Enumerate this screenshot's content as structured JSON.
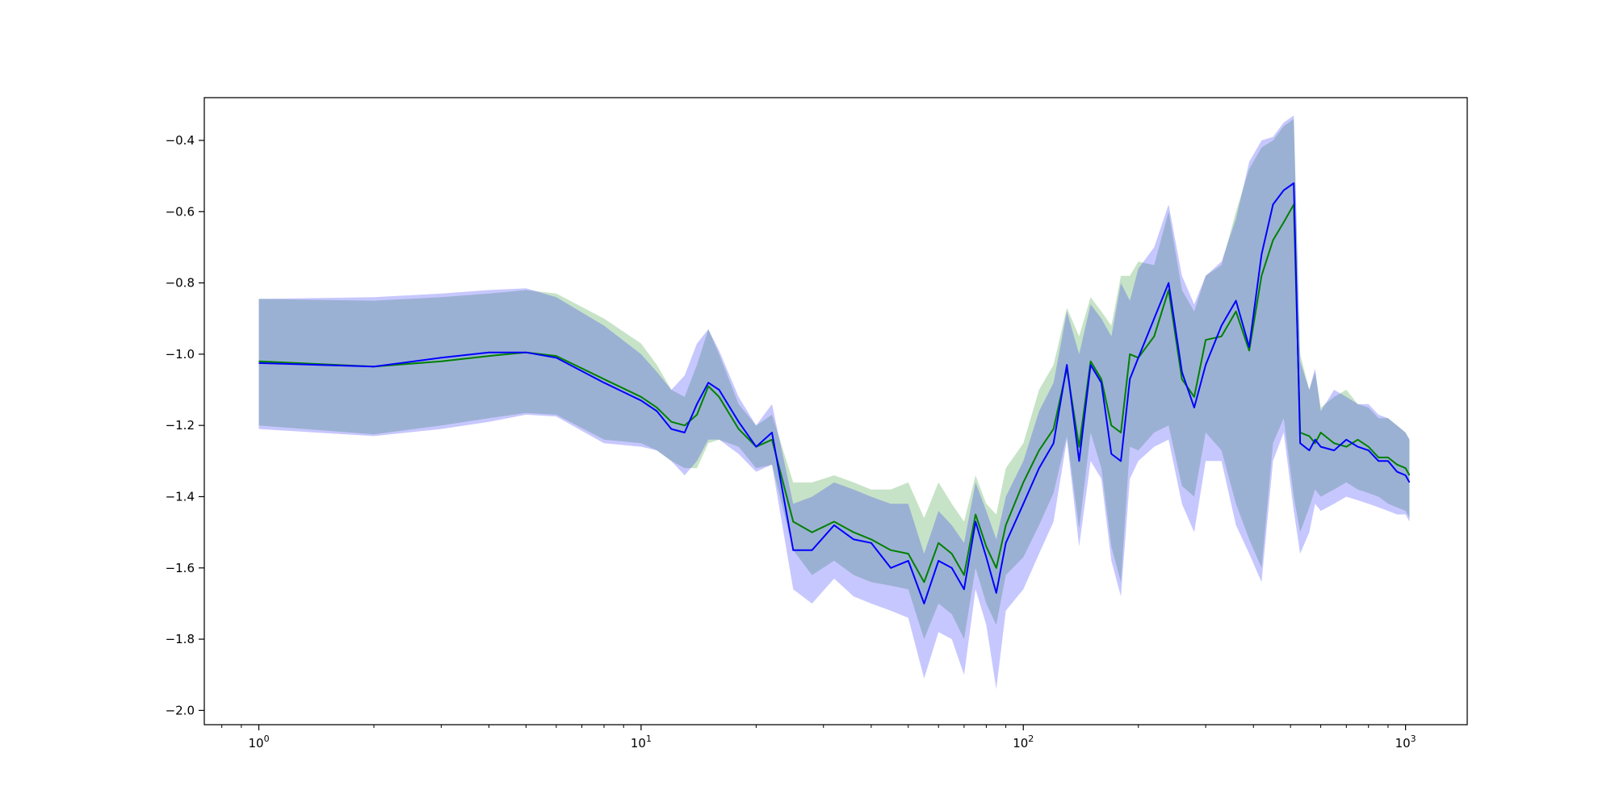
{
  "chart_data": {
    "type": "line",
    "xscale": "log",
    "xlim": [
      0.72,
      1450
    ],
    "ylim": [
      -2.04,
      -0.28
    ],
    "grid": false,
    "title": "",
    "xlabel": "",
    "ylabel": "",
    "x_ticks": [
      1,
      10,
      100,
      1000
    ],
    "x_tick_labels": [
      "10^0",
      "10^1",
      "10^2",
      "10^3"
    ],
    "y_ticks": [
      -2.0,
      -1.8,
      -1.6,
      -1.4,
      -1.2,
      -1.0,
      -0.8,
      -0.6,
      -0.4
    ],
    "y_tick_labels": [
      "−2.0",
      "−1.8",
      "−1.6",
      "−1.4",
      "−1.2",
      "−1.0",
      "−0.8",
      "−0.6",
      "−0.4"
    ],
    "colors": {
      "green_line": "#008000",
      "green_band": "#008000",
      "blue_line": "#0000ff",
      "blue_band": "#0000ff"
    },
    "series": [
      {
        "color": "green",
        "x": [
          1,
          2,
          3,
          4,
          5,
          6,
          8,
          10,
          11,
          12,
          13,
          14,
          15,
          16,
          18,
          20,
          22,
          25,
          28,
          32,
          36,
          40,
          45,
          50,
          55,
          60,
          65,
          70,
          75,
          80,
          85,
          90,
          100,
          110,
          120,
          130,
          140,
          150,
          160,
          170,
          180,
          190,
          200,
          220,
          240,
          260,
          280,
          300,
          330,
          360,
          390,
          420,
          450,
          480,
          510,
          530,
          560,
          580,
          600,
          650,
          700,
          750,
          800,
          850,
          900,
          950,
          1000,
          1024
        ],
        "y": [
          -1.02,
          -1.035,
          -1.02,
          -1.005,
          -0.995,
          -1.005,
          -1.07,
          -1.12,
          -1.15,
          -1.19,
          -1.2,
          -1.17,
          -1.09,
          -1.12,
          -1.21,
          -1.26,
          -1.24,
          -1.47,
          -1.5,
          -1.47,
          -1.5,
          -1.52,
          -1.55,
          -1.56,
          -1.64,
          -1.53,
          -1.56,
          -1.62,
          -1.45,
          -1.54,
          -1.6,
          -1.48,
          -1.36,
          -1.27,
          -1.21,
          -1.04,
          -1.26,
          -1.02,
          -1.07,
          -1.2,
          -1.22,
          -1.0,
          -1.01,
          -0.95,
          -0.82,
          -1.07,
          -1.12,
          -0.96,
          -0.95,
          -0.88,
          -0.99,
          -0.78,
          -0.68,
          -0.63,
          -0.58,
          -1.22,
          -1.23,
          -1.25,
          -1.22,
          -1.25,
          -1.26,
          -1.24,
          -1.26,
          -1.29,
          -1.29,
          -1.31,
          -1.32,
          -1.34
        ]
      },
      {
        "color": "blue",
        "x": [
          1,
          2,
          3,
          4,
          5,
          6,
          8,
          10,
          11,
          12,
          13,
          14,
          15,
          16,
          18,
          20,
          22,
          25,
          28,
          32,
          36,
          40,
          45,
          50,
          55,
          60,
          65,
          70,
          75,
          80,
          85,
          90,
          100,
          110,
          120,
          130,
          140,
          150,
          160,
          170,
          180,
          190,
          200,
          220,
          240,
          260,
          280,
          300,
          330,
          360,
          390,
          420,
          450,
          480,
          510,
          530,
          560,
          580,
          600,
          650,
          700,
          750,
          800,
          850,
          900,
          950,
          1000,
          1024
        ],
        "y": [
          -1.025,
          -1.035,
          -1.01,
          -0.995,
          -0.995,
          -1.01,
          -1.08,
          -1.13,
          -1.16,
          -1.21,
          -1.22,
          -1.14,
          -1.08,
          -1.1,
          -1.19,
          -1.26,
          -1.22,
          -1.55,
          -1.55,
          -1.48,
          -1.52,
          -1.53,
          -1.6,
          -1.58,
          -1.7,
          -1.58,
          -1.6,
          -1.66,
          -1.47,
          -1.57,
          -1.67,
          -1.53,
          -1.42,
          -1.32,
          -1.25,
          -1.03,
          -1.3,
          -1.03,
          -1.08,
          -1.28,
          -1.3,
          -1.07,
          -1.01,
          -0.9,
          -0.8,
          -1.05,
          -1.15,
          -1.03,
          -0.92,
          -0.85,
          -0.98,
          -0.72,
          -0.58,
          -0.54,
          -0.52,
          -1.25,
          -1.27,
          -1.24,
          -1.26,
          -1.27,
          -1.24,
          -1.26,
          -1.27,
          -1.3,
          -1.3,
          -1.33,
          -1.34,
          -1.36
        ]
      }
    ],
    "bands": [
      {
        "color": "green",
        "x": [
          1,
          2,
          3,
          4,
          5,
          6,
          8,
          10,
          11,
          12,
          13,
          14,
          15,
          16,
          18,
          20,
          22,
          25,
          28,
          32,
          36,
          40,
          45,
          50,
          55,
          60,
          65,
          70,
          75,
          80,
          85,
          90,
          100,
          110,
          120,
          130,
          140,
          150,
          160,
          170,
          180,
          190,
          200,
          220,
          240,
          260,
          280,
          300,
          330,
          360,
          390,
          420,
          450,
          480,
          510,
          530,
          560,
          580,
          600,
          650,
          700,
          750,
          800,
          850,
          900,
          950,
          1000,
          1024
        ],
        "upper": [
          -0.845,
          -0.85,
          -0.84,
          -0.83,
          -0.82,
          -0.83,
          -0.9,
          -0.97,
          -1.03,
          -1.1,
          -1.12,
          -1.03,
          -0.93,
          -1.0,
          -1.14,
          -1.2,
          -1.17,
          -1.36,
          -1.36,
          -1.34,
          -1.36,
          -1.38,
          -1.38,
          -1.36,
          -1.46,
          -1.36,
          -1.42,
          -1.47,
          -1.34,
          -1.42,
          -1.45,
          -1.32,
          -1.25,
          -1.1,
          -1.03,
          -0.87,
          -0.95,
          -0.84,
          -0.88,
          -0.92,
          -0.78,
          -0.78,
          -0.74,
          -0.75,
          -0.6,
          -0.82,
          -0.88,
          -0.78,
          -0.75,
          -0.6,
          -0.48,
          -0.42,
          -0.4,
          -0.36,
          -0.34,
          -1.0,
          -1.1,
          -1.05,
          -1.15,
          -1.12,
          -1.1,
          -1.14,
          -1.15,
          -1.18,
          -1.18,
          -1.2,
          -1.22,
          -1.24
        ],
        "lower": [
          -1.2,
          -1.225,
          -1.2,
          -1.18,
          -1.165,
          -1.17,
          -1.24,
          -1.25,
          -1.27,
          -1.3,
          -1.32,
          -1.32,
          -1.25,
          -1.24,
          -1.26,
          -1.32,
          -1.31,
          -1.55,
          -1.62,
          -1.58,
          -1.62,
          -1.64,
          -1.65,
          -1.66,
          -1.8,
          -1.7,
          -1.73,
          -1.8,
          -1.6,
          -1.7,
          -1.76,
          -1.62,
          -1.57,
          -1.48,
          -1.39,
          -1.23,
          -1.49,
          -1.22,
          -1.32,
          -1.54,
          -1.64,
          -1.26,
          -1.27,
          -1.22,
          -1.2,
          -1.37,
          -1.4,
          -1.22,
          -1.27,
          -1.42,
          -1.52,
          -1.6,
          -1.25,
          -1.18,
          -1.4,
          -1.5,
          -1.43,
          -1.38,
          -1.4,
          -1.38,
          -1.36,
          -1.38,
          -1.39,
          -1.4,
          -1.42,
          -1.43,
          -1.44,
          -1.46
        ]
      },
      {
        "color": "blue",
        "x": [
          1,
          2,
          3,
          4,
          5,
          6,
          8,
          10,
          11,
          12,
          13,
          14,
          15,
          16,
          18,
          20,
          22,
          25,
          28,
          32,
          36,
          40,
          45,
          50,
          55,
          60,
          65,
          70,
          75,
          80,
          85,
          90,
          100,
          110,
          120,
          130,
          140,
          150,
          160,
          170,
          180,
          190,
          200,
          220,
          240,
          260,
          280,
          300,
          330,
          360,
          390,
          420,
          450,
          480,
          510,
          530,
          560,
          580,
          600,
          650,
          700,
          750,
          800,
          850,
          900,
          950,
          1000,
          1024
        ],
        "upper": [
          -0.845,
          -0.84,
          -0.83,
          -0.82,
          -0.815,
          -0.84,
          -0.92,
          -1.0,
          -1.05,
          -1.1,
          -1.06,
          -0.97,
          -0.93,
          -0.99,
          -1.12,
          -1.2,
          -1.14,
          -1.42,
          -1.4,
          -1.36,
          -1.38,
          -1.4,
          -1.42,
          -1.42,
          -1.56,
          -1.44,
          -1.48,
          -1.53,
          -1.36,
          -1.44,
          -1.52,
          -1.4,
          -1.3,
          -1.16,
          -1.08,
          -0.88,
          -1.0,
          -0.86,
          -0.9,
          -0.95,
          -0.8,
          -0.85,
          -0.76,
          -0.7,
          -0.58,
          -0.78,
          -0.86,
          -0.78,
          -0.74,
          -0.62,
          -0.46,
          -0.4,
          -0.39,
          -0.35,
          -0.33,
          -1.02,
          -1.1,
          -1.04,
          -1.16,
          -1.1,
          -1.12,
          -1.14,
          -1.14,
          -1.17,
          -1.18,
          -1.2,
          -1.22,
          -1.24
        ],
        "lower": [
          -1.21,
          -1.23,
          -1.21,
          -1.19,
          -1.17,
          -1.175,
          -1.25,
          -1.26,
          -1.27,
          -1.3,
          -1.34,
          -1.3,
          -1.24,
          -1.24,
          -1.28,
          -1.33,
          -1.31,
          -1.66,
          -1.7,
          -1.63,
          -1.68,
          -1.7,
          -1.72,
          -1.74,
          -1.91,
          -1.78,
          -1.8,
          -1.9,
          -1.66,
          -1.76,
          -1.94,
          -1.72,
          -1.66,
          -1.56,
          -1.47,
          -1.24,
          -1.54,
          -1.3,
          -1.35,
          -1.58,
          -1.68,
          -1.35,
          -1.3,
          -1.26,
          -1.24,
          -1.42,
          -1.5,
          -1.3,
          -1.3,
          -1.48,
          -1.56,
          -1.64,
          -1.3,
          -1.22,
          -1.44,
          -1.56,
          -1.5,
          -1.42,
          -1.44,
          -1.42,
          -1.4,
          -1.41,
          -1.42,
          -1.43,
          -1.44,
          -1.45,
          -1.45,
          -1.47
        ]
      }
    ]
  }
}
